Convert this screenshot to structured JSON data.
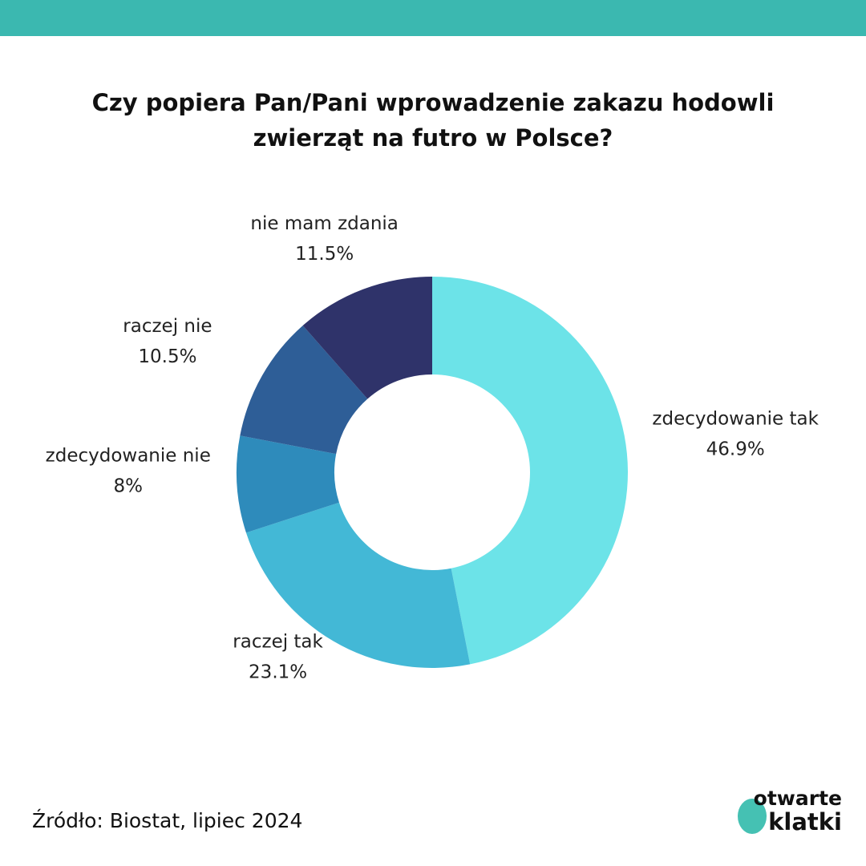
{
  "chart_data": {
    "type": "donut",
    "title": "Czy popiera Pan/Pani wprowadzenie zakazu hodowli zwierząt na futro w Polsce?",
    "categories": [
      "zdecydowanie tak",
      "raczej tak",
      "zdecydowanie nie",
      "raczej nie",
      "nie mam zdania"
    ],
    "values": [
      46.9,
      23.1,
      8,
      10.5,
      11.5
    ],
    "value_labels": [
      "46.9%",
      "23.1%",
      "8%",
      "10.5%",
      "11.5%"
    ],
    "colors": [
      "#6ce3e8",
      "#43b8d6",
      "#2e8bbb",
      "#2e5e97",
      "#2f336a"
    ]
  },
  "source": "Źródło: Biostat, lipiec 2024",
  "logo": [
    "otwarte",
    "klatki"
  ]
}
